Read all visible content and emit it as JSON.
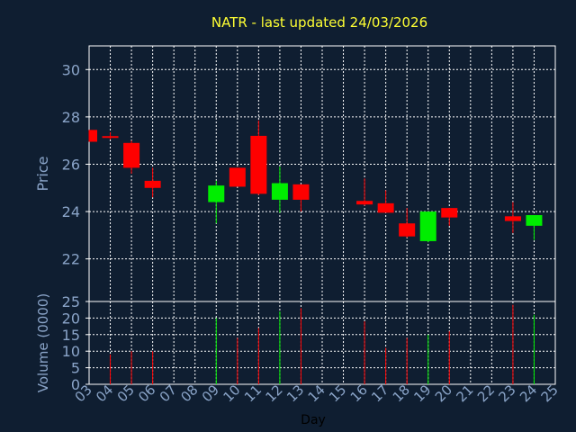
{
  "chart_data": {
    "type": "candlestick",
    "title": "NATR - last updated 24/03/2026",
    "xlabel": "Day",
    "price_panel": {
      "ylabel": "Price",
      "ylim": [
        20.2,
        31.0
      ],
      "yticks": [
        "30",
        "28",
        "26",
        "24",
        "22"
      ]
    },
    "volume_panel": {
      "ylabel": "Volume (0000)",
      "ylim": [
        0,
        25
      ],
      "yticks": [
        "25",
        "20",
        "15",
        "10",
        "5",
        "0"
      ]
    },
    "x_ticks": [
      "03",
      "04",
      "05",
      "06",
      "07",
      "08",
      "09",
      "10",
      "11",
      "12",
      "13",
      "14",
      "15",
      "16",
      "17",
      "18",
      "19",
      "20",
      "21",
      "22",
      "23",
      "24",
      "25"
    ],
    "grid": true,
    "colors": {
      "up": "#00ee00",
      "down": "#ff0000",
      "grid": "#ffffff",
      "frame": "#ffffff",
      "background": "#0f1e31"
    },
    "candles": [
      {
        "day": 3,
        "open": 27.45,
        "high": 27.45,
        "low": 26.95,
        "close": 26.95,
        "volume": 0
      },
      {
        "day": 4,
        "open": 27.15,
        "high": 27.35,
        "low": 27.05,
        "close": 27.1,
        "volume": 9
      },
      {
        "day": 5,
        "open": 26.9,
        "high": 27.0,
        "low": 25.6,
        "close": 25.85,
        "volume": 10
      },
      {
        "day": 6,
        "open": 25.3,
        "high": 25.85,
        "low": 24.6,
        "close": 25.0,
        "volume": 10
      },
      {
        "day": 9,
        "open": 24.4,
        "high": 25.3,
        "low": 23.5,
        "close": 25.1,
        "volume": 20
      },
      {
        "day": 10,
        "open": 25.85,
        "high": 25.85,
        "low": 25.05,
        "close": 25.05,
        "volume": 14
      },
      {
        "day": 11,
        "open": 27.2,
        "high": 27.85,
        "low": 24.7,
        "close": 24.75,
        "volume": 17
      },
      {
        "day": 12,
        "open": 24.5,
        "high": 25.9,
        "low": 23.95,
        "close": 25.2,
        "volume": 22
      },
      {
        "day": 13,
        "open": 25.15,
        "high": 25.15,
        "low": 24.0,
        "close": 24.5,
        "volume": 23
      },
      {
        "day": 16,
        "open": 24.45,
        "high": 25.4,
        "low": 24.25,
        "close": 24.3,
        "volume": 19
      },
      {
        "day": 17,
        "open": 24.35,
        "high": 24.9,
        "low": 23.95,
        "close": 23.95,
        "volume": 11
      },
      {
        "day": 18,
        "open": 23.5,
        "high": 24.15,
        "low": 22.9,
        "close": 22.95,
        "volume": 14
      },
      {
        "day": 19,
        "open": 22.75,
        "high": 24.0,
        "low": 22.7,
        "close": 24.0,
        "volume": 15
      },
      {
        "day": 20,
        "open": 24.15,
        "high": 24.15,
        "low": 23.4,
        "close": 23.75,
        "volume": 16
      },
      {
        "day": 23,
        "open": 23.8,
        "high": 24.4,
        "low": 23.1,
        "close": 23.6,
        "volume": 24
      },
      {
        "day": 24,
        "open": 23.4,
        "high": 23.85,
        "low": 22.8,
        "close": 23.85,
        "volume": 21
      }
    ]
  }
}
